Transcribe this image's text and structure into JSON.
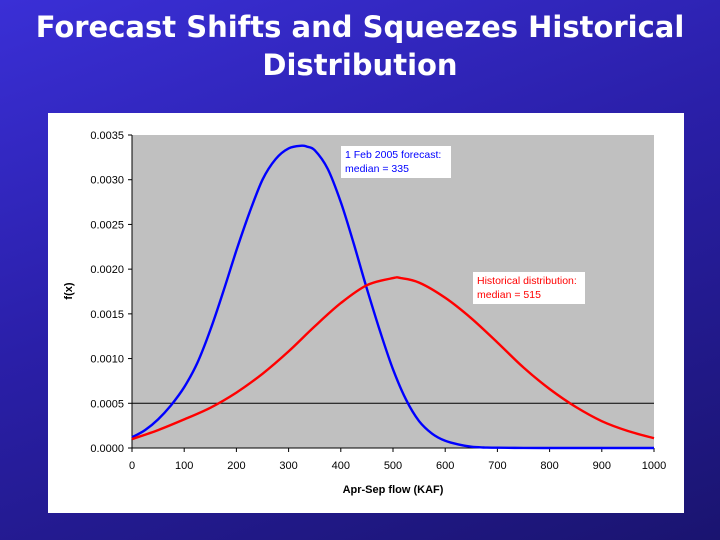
{
  "slide": {
    "title_line1": "Forecast Shifts and Squeezes Historical",
    "title_line2": "Distribution"
  },
  "chart_data": {
    "type": "line",
    "title": "",
    "xlabel": "Apr-Sep flow (KAF)",
    "ylabel": "f(x)",
    "xlim": [
      0,
      1000
    ],
    "ylim": [
      0.0,
      0.0035
    ],
    "x_ticks": [
      0,
      100,
      200,
      300,
      400,
      500,
      600,
      700,
      800,
      900,
      1000
    ],
    "x_tick_labels": [
      "0",
      "100",
      "200",
      "300",
      "400",
      "500",
      "600",
      "700",
      "800",
      "900",
      "1000"
    ],
    "y_ticks": [
      0.0,
      0.0005,
      0.001,
      0.0015,
      0.002,
      0.0025,
      0.003,
      0.0035
    ],
    "y_tick_labels": [
      "0.0000",
      "0.0005",
      "0.0010",
      "0.0015",
      "0.0020",
      "0.0025",
      "0.0030",
      "0.0035"
    ],
    "background_color": "#c0c0c0",
    "gridlines": [
      {
        "y": 0.0005,
        "color": "#000000"
      }
    ],
    "series": [
      {
        "name": "1 Feb 2005 forecast",
        "color": "#0000ff",
        "x": [
          0,
          25,
          50,
          75,
          100,
          125,
          150,
          175,
          200,
          225,
          250,
          275,
          300,
          325,
          335,
          350,
          375,
          400,
          425,
          450,
          475,
          500,
          525,
          550,
          575,
          600,
          625,
          650,
          675,
          700,
          750,
          800,
          850,
          900,
          1000
        ],
        "y": [
          0.00012,
          0.0002,
          0.00032,
          0.00048,
          0.00068,
          0.00095,
          0.00132,
          0.00175,
          0.00221,
          0.00263,
          0.003,
          0.00323,
          0.00335,
          0.00338,
          0.00337,
          0.00333,
          0.00312,
          0.00275,
          0.00228,
          0.00178,
          0.00131,
          0.00088,
          0.00054,
          0.0003,
          0.00016,
          8e-05,
          4e-05,
          1.5e-05,
          6e-06,
          3e-06,
          1e-06,
          0.0,
          0.0,
          0.0,
          0.0
        ]
      },
      {
        "name": "Historical distribution",
        "color": "#ff0000",
        "x": [
          0,
          50,
          100,
          150,
          200,
          250,
          300,
          350,
          400,
          450,
          500,
          515,
          550,
          600,
          650,
          700,
          750,
          800,
          850,
          900,
          950,
          1000
        ],
        "y": [
          0.0001,
          0.0002,
          0.00032,
          0.00045,
          0.00062,
          0.00083,
          0.00108,
          0.00136,
          0.00162,
          0.00182,
          0.0019,
          0.0019,
          0.00185,
          0.00168,
          0.00145,
          0.00118,
          0.0009,
          0.00066,
          0.00046,
          0.0003,
          0.00019,
          0.00011
        ]
      }
    ],
    "annotations": [
      {
        "series": "1 Feb 2005 forecast",
        "line1": "1 Feb 2005 forecast:",
        "line2": "median = 335",
        "color": "#0000ff"
      },
      {
        "series": "Historical distribution",
        "line1": "Historical distribution:",
        "line2": "median = 515",
        "color": "#ff0000"
      }
    ]
  }
}
